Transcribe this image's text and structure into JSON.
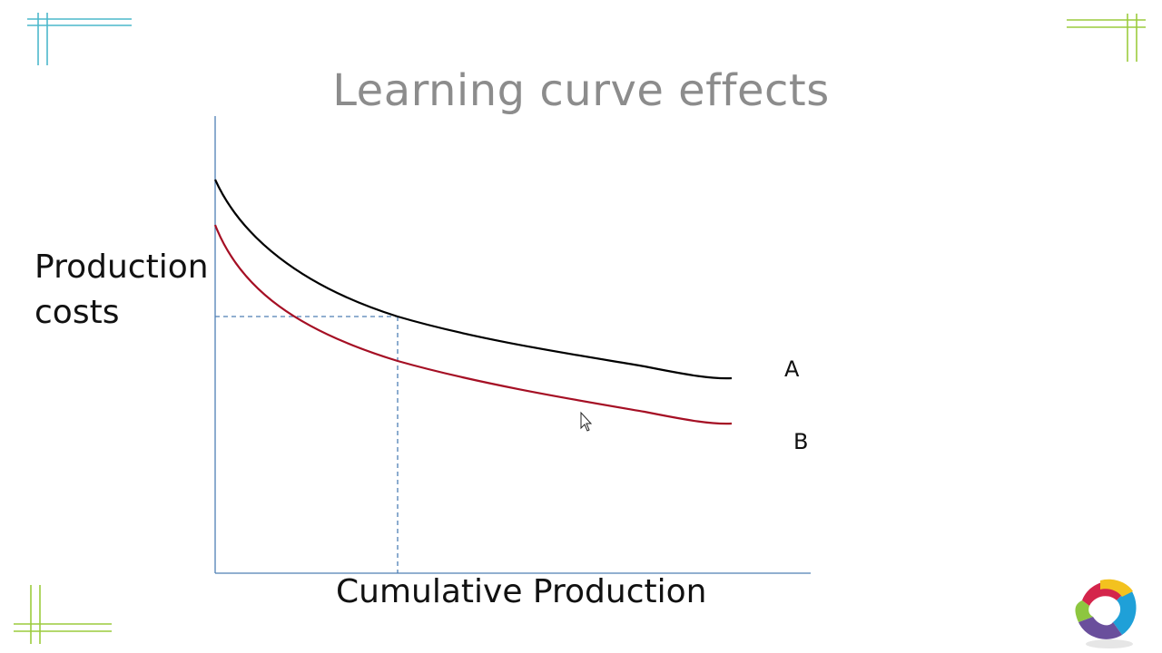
{
  "slide": {
    "title": "Learning curve effects"
  },
  "chart_data": {
    "type": "line",
    "xlabel": "Cumulative Production",
    "ylabel_lines": [
      "Production",
      "costs"
    ],
    "x_ticks": "none",
    "y_ticks": "none",
    "grid": false,
    "series": [
      {
        "name": "A",
        "color": "#000000"
      },
      {
        "name": "B",
        "color": "#a50f24"
      }
    ],
    "reference_lines": {
      "style": "dashed",
      "color": "#4f7fb5"
    }
  },
  "decorations": {
    "corner_line_colors": [
      "#4cb8cc",
      "#9ccc3d"
    ],
    "logo_colors": [
      "#d4254b",
      "#f3c21f",
      "#8dc63f",
      "#1fa0d8",
      "#6a4f9c"
    ]
  }
}
